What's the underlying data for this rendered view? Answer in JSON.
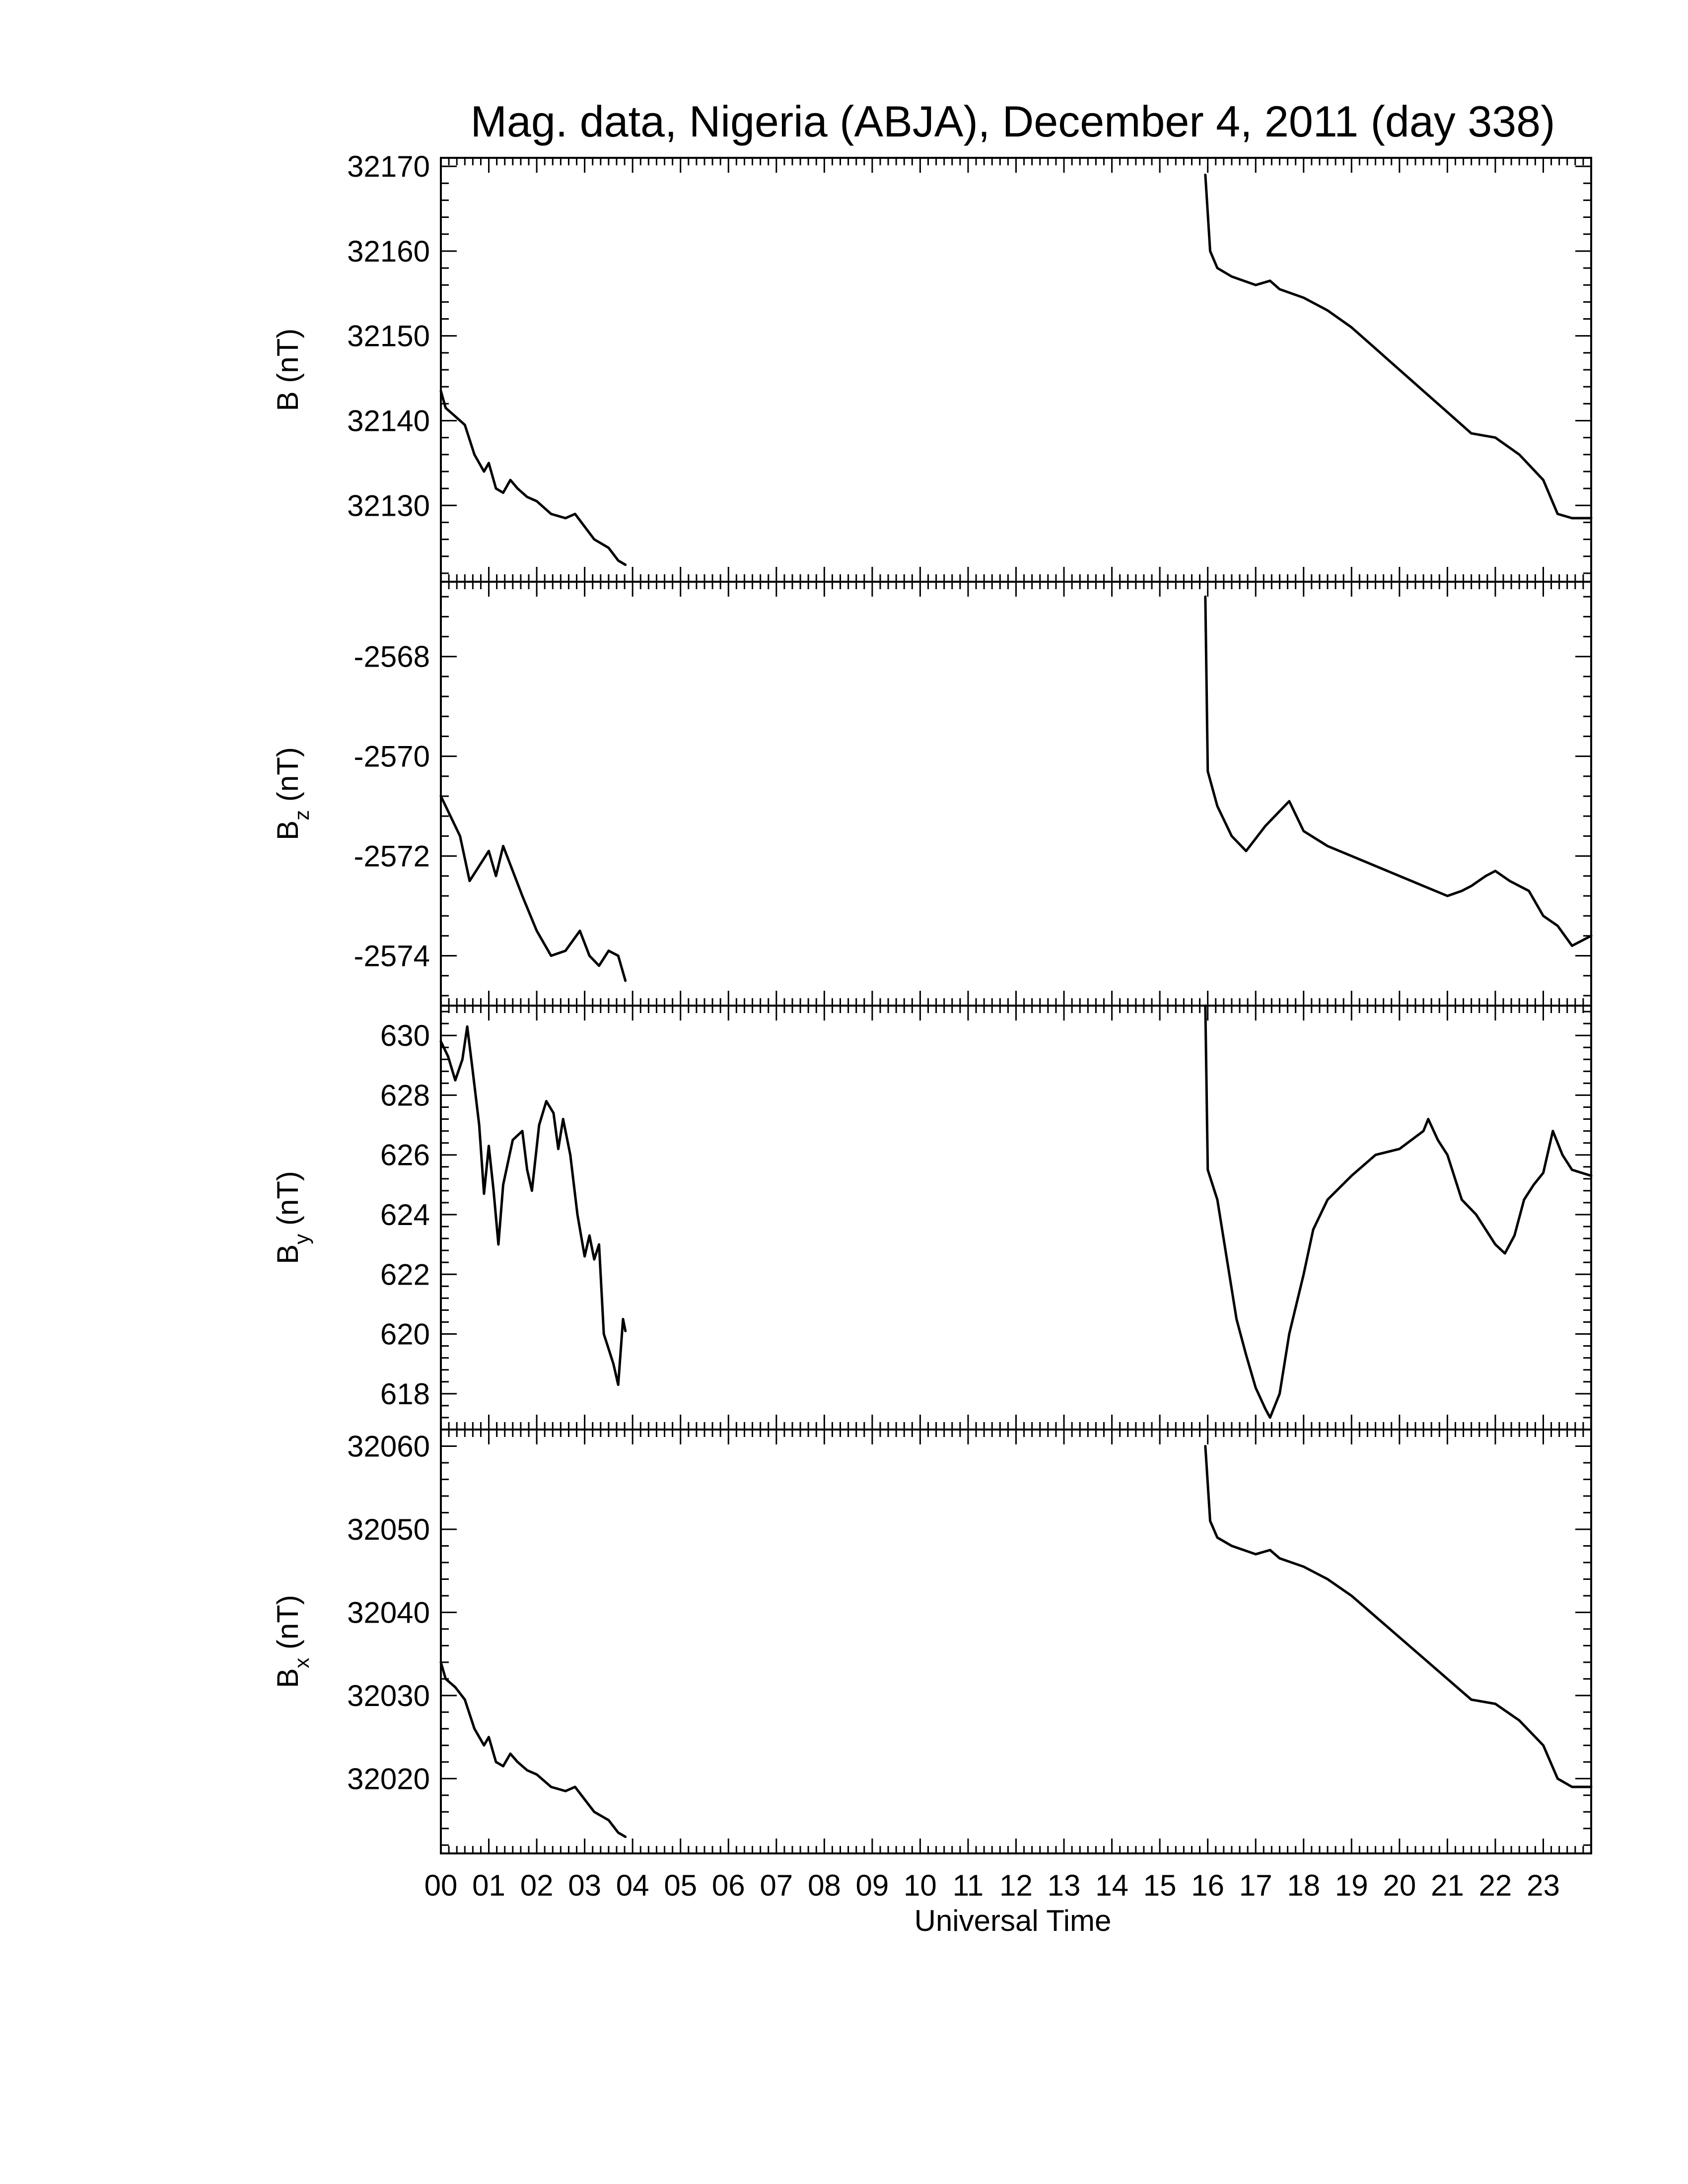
{
  "chart_data": {
    "type": "line",
    "title": "Mag. data, Nigeria (ABJA), December 4, 2011 (day 338)",
    "xlabel": "Universal Time",
    "xlim": [
      0,
      24
    ],
    "x_tick_labels": [
      "00",
      "01",
      "02",
      "03",
      "04",
      "05",
      "06",
      "07",
      "08",
      "09",
      "10",
      "11",
      "12",
      "13",
      "14",
      "15",
      "16",
      "17",
      "18",
      "19",
      "20",
      "21",
      "22",
      "23"
    ],
    "grid": false,
    "line_color": "#000000",
    "panels": [
      {
        "ylabel_main": "B",
        "ylabel_sub": "",
        "ylabel_unit": "(nT)",
        "ylim": [
          32121,
          32171
        ],
        "yticks": [
          32130,
          32140,
          32150,
          32160,
          32170
        ],
        "segments": [
          [
            [
              0,
              32143.5
            ],
            [
              0.1,
              32141.5
            ],
            [
              0.3,
              32140.5
            ],
            [
              0.5,
              32139.5
            ],
            [
              0.7,
              32136
            ],
            [
              0.9,
              32134
            ],
            [
              1.0,
              32135
            ],
            [
              1.15,
              32132
            ],
            [
              1.3,
              32131.5
            ],
            [
              1.45,
              32133
            ],
            [
              1.6,
              32132
            ],
            [
              1.8,
              32131
            ],
            [
              2.0,
              32130.5
            ],
            [
              2.3,
              32129
            ],
            [
              2.6,
              32128.5
            ],
            [
              2.8,
              32129
            ],
            [
              3.0,
              32127.5
            ],
            [
              3.2,
              32126
            ],
            [
              3.5,
              32125
            ],
            [
              3.7,
              32123.5
            ],
            [
              3.85,
              32123
            ]
          ],
          [
            [
              15.95,
              32169
            ],
            [
              16.05,
              32160
            ],
            [
              16.2,
              32158
            ],
            [
              16.5,
              32157
            ],
            [
              17.0,
              32156
            ],
            [
              17.3,
              32156.5
            ],
            [
              17.5,
              32155.5
            ],
            [
              18.0,
              32154.5
            ],
            [
              18.5,
              32153
            ],
            [
              19.0,
              32151
            ],
            [
              19.5,
              32148.5
            ],
            [
              20.0,
              32146
            ],
            [
              20.5,
              32143.5
            ],
            [
              21.0,
              32141
            ],
            [
              21.5,
              32138.5
            ],
            [
              22.0,
              32138
            ],
            [
              22.5,
              32136
            ],
            [
              23.0,
              32133
            ],
            [
              23.3,
              32129
            ],
            [
              23.6,
              32128.5
            ],
            [
              24.0,
              32128.5
            ]
          ]
        ]
      },
      {
        "ylabel_main": "B",
        "ylabel_sub": "z",
        "ylabel_unit": "(nT)",
        "ylim": [
          -2575,
          -2566.5
        ],
        "yticks": [
          -2574,
          -2572,
          -2570,
          -2568
        ],
        "segments": [
          [
            [
              0,
              -2570.8
            ],
            [
              0.2,
              -2571.2
            ],
            [
              0.4,
              -2571.6
            ],
            [
              0.6,
              -2572.5
            ],
            [
              0.8,
              -2572.2
            ],
            [
              1.0,
              -2571.9
            ],
            [
              1.15,
              -2572.4
            ],
            [
              1.3,
              -2571.8
            ],
            [
              1.5,
              -2572.3
            ],
            [
              1.7,
              -2572.8
            ],
            [
              2.0,
              -2573.5
            ],
            [
              2.3,
              -2574
            ],
            [
              2.6,
              -2573.9
            ],
            [
              2.9,
              -2573.5
            ],
            [
              3.1,
              -2574
            ],
            [
              3.3,
              -2574.2
            ],
            [
              3.5,
              -2573.9
            ],
            [
              3.7,
              -2574
            ],
            [
              3.85,
              -2574.5
            ]
          ],
          [
            [
              15.95,
              -2566.8
            ],
            [
              16.0,
              -2570.3
            ],
            [
              16.2,
              -2571
            ],
            [
              16.5,
              -2571.6
            ],
            [
              16.8,
              -2571.9
            ],
            [
              17.2,
              -2571.4
            ],
            [
              17.5,
              -2571.1
            ],
            [
              17.7,
              -2570.9
            ],
            [
              18.0,
              -2571.5
            ],
            [
              18.5,
              -2571.8
            ],
            [
              19.0,
              -2572
            ],
            [
              19.5,
              -2572.2
            ],
            [
              20.0,
              -2572.4
            ],
            [
              20.5,
              -2572.6
            ],
            [
              21.0,
              -2572.8
            ],
            [
              21.3,
              -2572.7
            ],
            [
              21.5,
              -2572.6
            ],
            [
              21.8,
              -2572.4
            ],
            [
              22.0,
              -2572.3
            ],
            [
              22.3,
              -2572.5
            ],
            [
              22.7,
              -2572.7
            ],
            [
              23.0,
              -2573.2
            ],
            [
              23.3,
              -2573.4
            ],
            [
              23.6,
              -2573.8
            ],
            [
              24.0,
              -2573.6
            ]
          ]
        ]
      },
      {
        "ylabel_main": "B",
        "ylabel_sub": "y",
        "ylabel_unit": "(nT)",
        "ylim": [
          616.8,
          631
        ],
        "yticks": [
          618,
          620,
          622,
          624,
          626,
          628,
          630
        ],
        "segments": [
          [
            [
              0,
              629.8
            ],
            [
              0.15,
              629.3
            ],
            [
              0.3,
              628.5
            ],
            [
              0.45,
              629.2
            ],
            [
              0.55,
              630.3
            ],
            [
              0.65,
              629
            ],
            [
              0.8,
              627
            ],
            [
              0.9,
              624.7
            ],
            [
              1.0,
              626.3
            ],
            [
              1.1,
              624.8
            ],
            [
              1.2,
              623
            ],
            [
              1.3,
              625
            ],
            [
              1.5,
              626.5
            ],
            [
              1.7,
              626.8
            ],
            [
              1.8,
              625.5
            ],
            [
              1.9,
              624.8
            ],
            [
              2.05,
              627
            ],
            [
              2.2,
              627.8
            ],
            [
              2.35,
              627.4
            ],
            [
              2.45,
              626.2
            ],
            [
              2.55,
              627.2
            ],
            [
              2.7,
              626
            ],
            [
              2.85,
              624
            ],
            [
              3.0,
              622.6
            ],
            [
              3.1,
              623.3
            ],
            [
              3.2,
              622.5
            ],
            [
              3.3,
              623
            ],
            [
              3.4,
              620
            ],
            [
              3.5,
              619.5
            ],
            [
              3.6,
              619
            ],
            [
              3.7,
              618.3
            ],
            [
              3.8,
              620.5
            ],
            [
              3.85,
              620.1
            ]
          ],
          [
            [
              15.95,
              631
            ],
            [
              16.0,
              625.5
            ],
            [
              16.2,
              624.5
            ],
            [
              16.4,
              622.5
            ],
            [
              16.6,
              620.5
            ],
            [
              16.8,
              619.3
            ],
            [
              17.0,
              618.2
            ],
            [
              17.2,
              617.5
            ],
            [
              17.3,
              617.2
            ],
            [
              17.5,
              618
            ],
            [
              17.7,
              620
            ],
            [
              18.0,
              622
            ],
            [
              18.2,
              623.5
            ],
            [
              18.5,
              624.5
            ],
            [
              19.0,
              625.3
            ],
            [
              19.5,
              626
            ],
            [
              20.0,
              626.2
            ],
            [
              20.5,
              626.8
            ],
            [
              20.6,
              627.2
            ],
            [
              20.8,
              626.5
            ],
            [
              21.0,
              626
            ],
            [
              21.3,
              624.5
            ],
            [
              21.6,
              624
            ],
            [
              22.0,
              623
            ],
            [
              22.2,
              622.7
            ],
            [
              22.4,
              623.3
            ],
            [
              22.6,
              624.5
            ],
            [
              22.8,
              625
            ],
            [
              23.0,
              625.4
            ],
            [
              23.2,
              626.8
            ],
            [
              23.4,
              626
            ],
            [
              23.6,
              625.5
            ],
            [
              24.0,
              625.3
            ]
          ]
        ]
      },
      {
        "ylabel_main": "B",
        "ylabel_sub": "x",
        "ylabel_unit": "(nT)",
        "ylim": [
          32011,
          32062
        ],
        "yticks": [
          32020,
          32030,
          32040,
          32050,
          32060
        ],
        "segments": [
          [
            [
              0,
              32034
            ],
            [
              0.1,
              32032
            ],
            [
              0.3,
              32031
            ],
            [
              0.5,
              32029.5
            ],
            [
              0.7,
              32026
            ],
            [
              0.9,
              32024
            ],
            [
              1.0,
              32025
            ],
            [
              1.15,
              32022
            ],
            [
              1.3,
              32021.5
            ],
            [
              1.45,
              32023
            ],
            [
              1.6,
              32022
            ],
            [
              1.8,
              32021
            ],
            [
              2.0,
              32020.5
            ],
            [
              2.3,
              32019
            ],
            [
              2.6,
              32018.5
            ],
            [
              2.8,
              32019
            ],
            [
              3.0,
              32017.5
            ],
            [
              3.2,
              32016
            ],
            [
              3.5,
              32015
            ],
            [
              3.7,
              32013.5
            ],
            [
              3.85,
              32013
            ]
          ],
          [
            [
              15.95,
              32060
            ],
            [
              16.05,
              32051
            ],
            [
              16.2,
              32049
            ],
            [
              16.5,
              32048
            ],
            [
              17.0,
              32047
            ],
            [
              17.3,
              32047.5
            ],
            [
              17.5,
              32046.5
            ],
            [
              18.0,
              32045.5
            ],
            [
              18.5,
              32044
            ],
            [
              19.0,
              32042
            ],
            [
              19.5,
              32039.5
            ],
            [
              20.0,
              32037
            ],
            [
              20.5,
              32034.5
            ],
            [
              21.0,
              32032
            ],
            [
              21.5,
              32029.5
            ],
            [
              22.0,
              32029
            ],
            [
              22.5,
              32027
            ],
            [
              23.0,
              32024
            ],
            [
              23.3,
              32020
            ],
            [
              23.6,
              32019
            ],
            [
              24.0,
              32019
            ]
          ]
        ]
      }
    ]
  }
}
